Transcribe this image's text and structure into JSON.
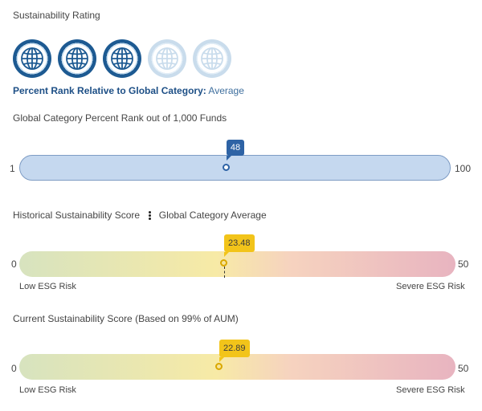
{
  "sustainability": {
    "title": "Sustainability Rating",
    "globes": {
      "filled": 3,
      "total": 5
    },
    "rank_label": "Percent Rank Relative to Global Category:",
    "rank_value": "Average"
  },
  "percent_rank": {
    "title": "Global Category Percent Rank out of 1,000 Funds",
    "min": "1",
    "max": "100",
    "value": "48",
    "value_fraction": 0.48
  },
  "historical": {
    "title": "Historical Sustainability Score",
    "subtitle": "Global Category Average",
    "min": "0",
    "max": "50",
    "value": "23.48",
    "value_fraction": 0.4696,
    "low_label": "Low ESG Risk",
    "high_label": "Severe ESG Risk"
  },
  "current": {
    "title": "Current Sustainability Score (Based on 99% of AUM)",
    "min": "0",
    "max": "50",
    "value": "22.89",
    "value_fraction": 0.4578,
    "low_label": "Low ESG Risk",
    "high_label": "Severe ESG Risk"
  },
  "colors": {
    "globe_filled": "#1d5a92",
    "globe_empty": "#c9dcec",
    "rank_marker": "#2e63a5",
    "score_marker": "#f2c41a"
  },
  "icons": {
    "globe": "globe-icon",
    "menu": "kebab-menu-icon"
  }
}
